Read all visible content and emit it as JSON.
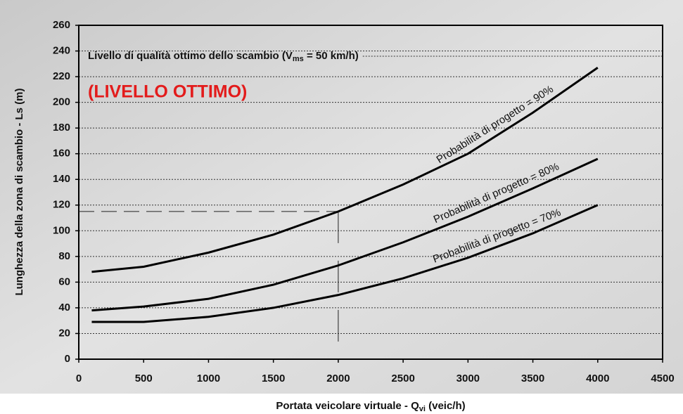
{
  "chart_data": {
    "type": "line",
    "title_parts": [
      "Livello di qualità ottimo dello scambio (V",
      "ms",
      " = 50 km/h)"
    ],
    "annotation": "(LIVELLO OTTIMO)",
    "xlabel_parts": [
      "Portata veicolare virtuale - Q",
      "vi",
      " (veic/h)"
    ],
    "ylabel": "Lunghezza della zona di scambio - Ls (m)",
    "x": [
      100,
      500,
      1000,
      1500,
      2000,
      2500,
      3000,
      3500,
      4000
    ],
    "series": [
      {
        "name": "Probabilità di progetto = 90%",
        "color": "#000000",
        "values": [
          68,
          72,
          83,
          97,
          115,
          136,
          160,
          192,
          227
        ]
      },
      {
        "name": "Probabilità di progetto = 80%",
        "color": "#000000",
        "values": [
          38,
          41,
          47,
          58,
          73,
          91,
          111,
          133,
          156
        ]
      },
      {
        "name": "Probabilità di progetto = 70%",
        "color": "#000000",
        "values": [
          29,
          29,
          33,
          40,
          50,
          63,
          79,
          98,
          120
        ]
      }
    ],
    "reference": {
      "x": 2000,
      "y": 115
    },
    "xlim": [
      0,
      4500
    ],
    "xticks": [
      0,
      500,
      1000,
      1500,
      2000,
      2500,
      3000,
      3500,
      4000,
      4500
    ],
    "ylim": [
      0,
      260
    ],
    "yticks": [
      0,
      20,
      40,
      60,
      80,
      100,
      120,
      140,
      160,
      180,
      200,
      220,
      240,
      260
    ],
    "grid": true
  }
}
